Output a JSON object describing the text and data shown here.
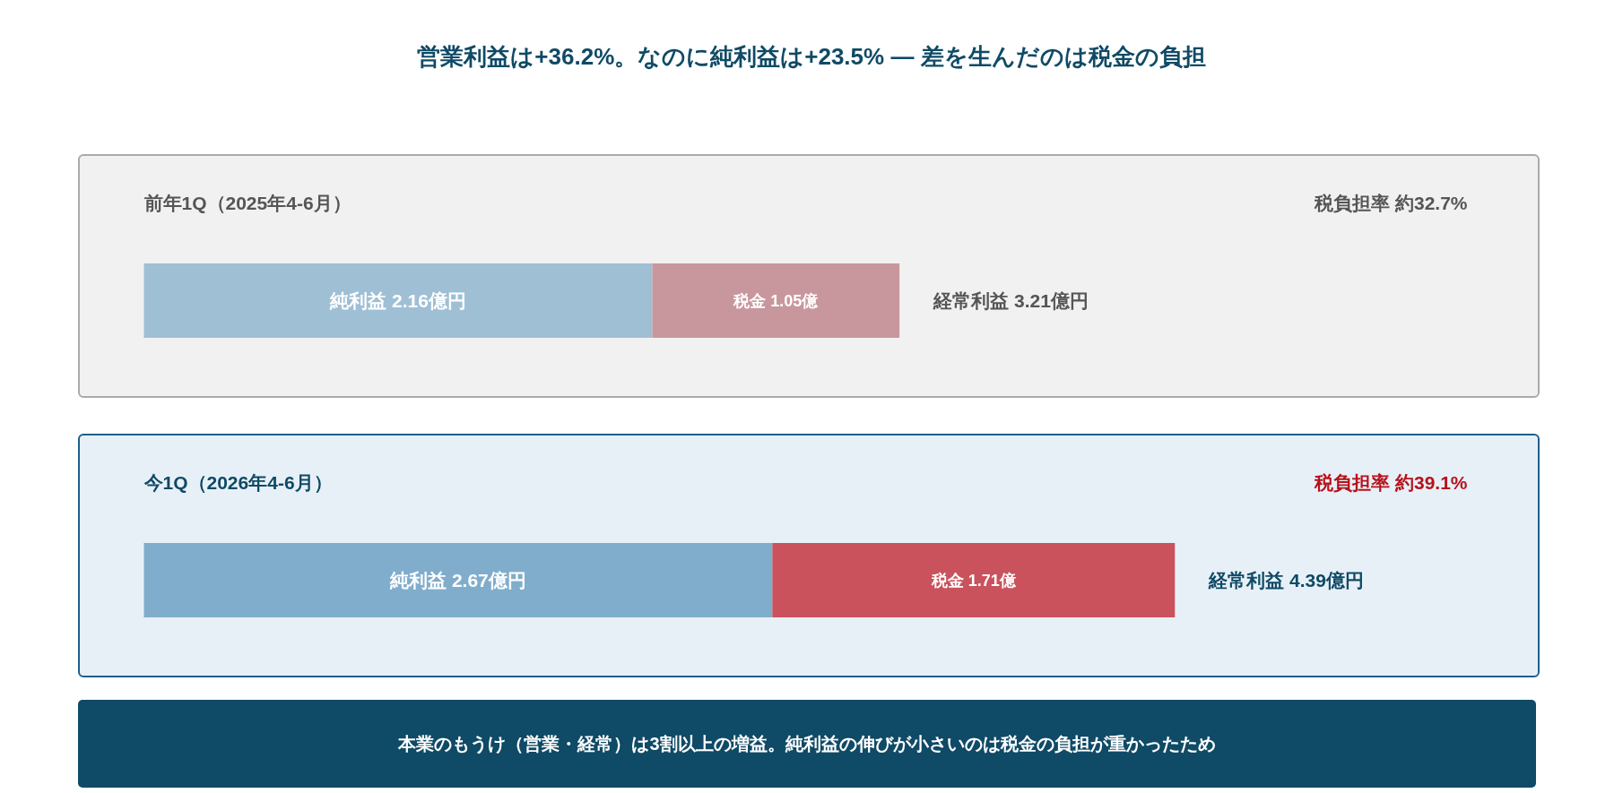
{
  "chart_data": {
    "type": "bar",
    "orientation": "horizontal",
    "stacked": true,
    "title": "営業利益は+36.2%。なのに純利益は+23.5% — 差を生んだのは税金の負担",
    "categories": [
      "前年1Q（2025年4-6月）",
      "今1Q（2026年4-6月）"
    ],
    "series": [
      {
        "colors": [
          "#9fbfd5",
          "#80adcc"
        ],
        "values": [
          2.16,
          2.67
        ],
        "value_labels": [
          "純利益 2.16億円",
          "純利益 2.67億円"
        ]
      },
      {
        "colors": [
          "#c8979d",
          "#c9525c"
        ],
        "values": [
          1.05,
          1.71
        ],
        "value_labels": [
          "税金 1.05億",
          "税金 1.71億"
        ]
      }
    ],
    "totals": [
      "経常利益 3.21億円",
      "経常利益 4.39億円"
    ],
    "annotations": [
      "税負担率 約32.7%",
      "税負担率 約39.1%",
      "本業のもうけ（営業・経常）は3割以上の増益。純利益の伸びが小さいのは税金の負担が重かったため"
    ],
    "grid": false,
    "tick_labels": false
  }
}
